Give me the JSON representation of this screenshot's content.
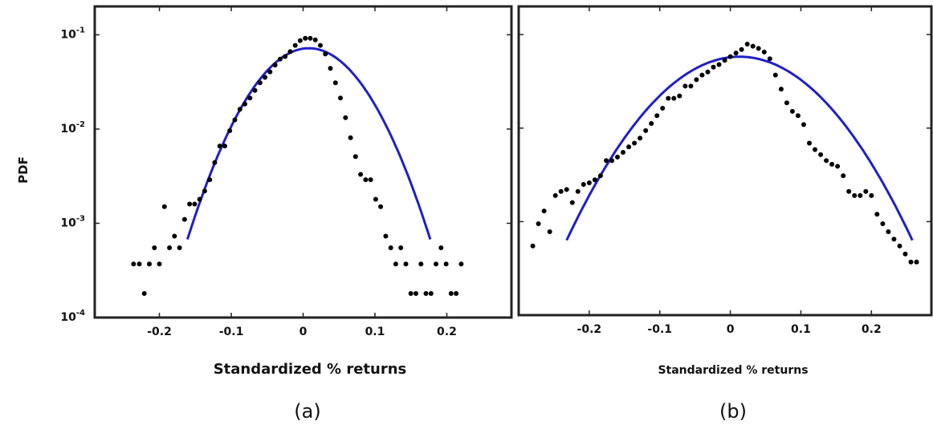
{
  "figure": {
    "ylabel": "PDF",
    "captions": [
      "(a)",
      "(b)"
    ]
  },
  "chart_data": [
    {
      "type": "scatter",
      "panel": "a",
      "xlabel": "Standardized  % returns",
      "ylabel": "PDF",
      "yscale": "log",
      "xlim": [
        -0.29,
        0.29
      ],
      "ylim": [
        0.0001,
        0.2
      ],
      "xticks": [
        -0.2,
        -0.1,
        0,
        0.1,
        0.2
      ],
      "xtick_labels": [
        "-0.2",
        "-0.1",
        "0",
        "0.1",
        "0.2"
      ],
      "yticks": [
        0.0001,
        0.001,
        0.01,
        0.1
      ],
      "ytick_base": [
        "10",
        "10",
        "10",
        "10"
      ],
      "ytick_exp": [
        "-4",
        "-3",
        "-2",
        "-1"
      ],
      "grid": false,
      "marker_color": "#000000",
      "fit_color": "#1f1fc8",
      "series": [
        {
          "kind": "points",
          "x": [
            -0.236,
            -0.228,
            -0.221,
            -0.214,
            -0.207,
            -0.2,
            -0.193,
            -0.186,
            -0.179,
            -0.172,
            -0.165,
            -0.158,
            -0.151,
            -0.144,
            -0.137,
            -0.13,
            -0.123,
            -0.116,
            -0.109,
            -0.102,
            -0.095,
            -0.088,
            -0.081,
            -0.074,
            -0.067,
            -0.06,
            -0.053,
            -0.046,
            -0.039,
            -0.032,
            -0.025,
            -0.018,
            -0.011,
            -0.004,
            0.003,
            0.01,
            0.017,
            0.024,
            0.031,
            0.038,
            0.045,
            0.052,
            0.059,
            0.066,
            0.073,
            0.08,
            0.087,
            0.094,
            0.101,
            0.108,
            0.115,
            0.122,
            0.129,
            0.136,
            0.143,
            0.15,
            0.157,
            0.164,
            0.171,
            0.178,
            0.185,
            0.192,
            0.199,
            0.206,
            0.213,
            0.22
          ],
          "y": [
            0.00037,
            0.00037,
            0.00018,
            0.00037,
            0.00055,
            0.00037,
            0.0015,
            0.00055,
            0.00073,
            0.00055,
            0.0011,
            0.0016,
            0.0016,
            0.0018,
            0.0022,
            0.0029,
            0.0044,
            0.0066,
            0.0066,
            0.0096,
            0.0125,
            0.0162,
            0.0184,
            0.0213,
            0.0257,
            0.0309,
            0.0353,
            0.0404,
            0.0478,
            0.0551,
            0.0588,
            0.0662,
            0.0772,
            0.0868,
            0.0919,
            0.0919,
            0.0882,
            0.0772,
            0.0625,
            0.0441,
            0.0309,
            0.0213,
            0.0132,
            0.0081,
            0.0051,
            0.0033,
            0.0029,
            0.0029,
            0.0018,
            0.0015,
            0.00073,
            0.00055,
            0.00037,
            0.00055,
            0.00037,
            0.00018,
            0.00018,
            0.00037,
            0.00018,
            0.00018,
            0.00037,
            0.00055,
            0.00037,
            0.00018,
            0.00018,
            0.00037
          ]
        },
        {
          "kind": "gaussian-fit",
          "peak": 0.072,
          "mean": 0.008,
          "sigma": 0.0553,
          "x_range": [
            -0.161,
            0.177
          ]
        }
      ]
    },
    {
      "type": "scatter",
      "panel": "b",
      "xlabel": "Standardized % returns",
      "ylabel": "PDF",
      "yscale": "log",
      "xlim": [
        -0.3,
        0.285
      ],
      "ylim": [
        0.0001,
        0.2
      ],
      "xticks": [
        -0.2,
        -0.1,
        0,
        0.1,
        0.2
      ],
      "xtick_labels": [
        "-0.2",
        "-0.1",
        "0",
        "0.1",
        "0.2"
      ],
      "yticks": [
        0.0001,
        0.001,
        0.01,
        0.1
      ],
      "grid": false,
      "marker_color": "#000000",
      "fit_color": "#1f1fc8",
      "series": [
        {
          "kind": "points",
          "x": [
            -0.28,
            -0.272,
            -0.264,
            -0.256,
            -0.248,
            -0.24,
            -0.232,
            -0.224,
            -0.216,
            -0.208,
            -0.2,
            -0.192,
            -0.184,
            -0.176,
            -0.168,
            -0.16,
            -0.152,
            -0.144,
            -0.136,
            -0.128,
            -0.12,
            -0.112,
            -0.104,
            -0.096,
            -0.088,
            -0.08,
            -0.072,
            -0.064,
            -0.056,
            -0.048,
            -0.04,
            -0.032,
            -0.024,
            -0.016,
            -0.008,
            0,
            0.008,
            0.016,
            0.024,
            0.032,
            0.04,
            0.048,
            0.056,
            0.064,
            0.072,
            0.08,
            0.088,
            0.096,
            0.104,
            0.112,
            0.12,
            0.128,
            0.136,
            0.144,
            0.152,
            0.16,
            0.168,
            0.176,
            0.184,
            0.192,
            0.2,
            0.208,
            0.216,
            0.224,
            0.232,
            0.24,
            0.248,
            0.256,
            0.264
          ],
          "y": [
            0.00055,
            0.00095,
            0.0013,
            0.00078,
            0.0019,
            0.0021,
            0.0022,
            0.0016,
            0.0021,
            0.0025,
            0.0026,
            0.0028,
            0.0031,
            0.0045,
            0.0045,
            0.0049,
            0.0055,
            0.0063,
            0.0069,
            0.0078,
            0.0094,
            0.0112,
            0.0136,
            0.0163,
            0.0208,
            0.0208,
            0.0221,
            0.0281,
            0.0281,
            0.0329,
            0.0369,
            0.0398,
            0.0449,
            0.0478,
            0.0531,
            0.0581,
            0.0635,
            0.0691,
            0.0791,
            0.0751,
            0.0711,
            0.0651,
            0.0551,
            0.0369,
            0.0261,
            0.0186,
            0.0151,
            0.0136,
            0.0109,
            0.0069,
            0.0059,
            0.0052,
            0.0045,
            0.0041,
            0.0039,
            0.0031,
            0.0021,
            0.0019,
            0.0019,
            0.0021,
            0.0019,
            0.0012,
            0.00095,
            0.00078,
            0.00065,
            0.00055,
            0.00045,
            0.00037,
            0.00037
          ]
        },
        {
          "kind": "gaussian-fit",
          "peak": 0.058,
          "mean": 0.013,
          "sigma": 0.0815,
          "x_range": [
            -0.232,
            0.258
          ]
        }
      ]
    }
  ]
}
